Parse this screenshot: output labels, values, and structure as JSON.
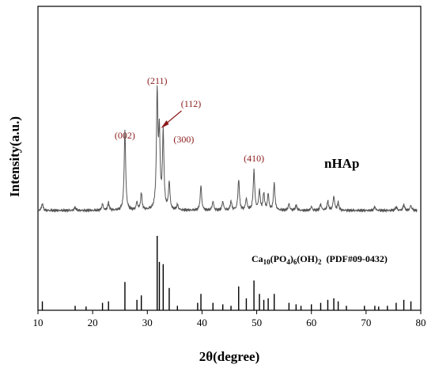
{
  "chart_data": {
    "type": "line",
    "xlabel": "2θ(degree)",
    "ylabel": "Intensity(a.u.)",
    "xlim": [
      10,
      80
    ],
    "xticks": [
      10,
      20,
      30,
      40,
      50,
      60,
      70,
      80
    ],
    "grid": false,
    "legend": "none",
    "colors": {
      "axis": "#000000",
      "pattern": "#555555",
      "reference": "#000000",
      "annotation": "#8b1a1a"
    },
    "sample_label": "nHAp",
    "reference_label": {
      "main": "Ca",
      "sub1": "10",
      "paren_open": "(PO",
      "sub2": "4",
      "paren_close": ")",
      "sub3": "6",
      "oh": "(OH)",
      "sub4": "2",
      "pdf": "(PDF#09-0432)"
    },
    "annotations": [
      {
        "label": "(211)",
        "x": 31.8
      },
      {
        "label": "(112)",
        "x": 32.2
      },
      {
        "label": "(300)",
        "x": 32.9
      },
      {
        "label": "(002)",
        "x": 25.9
      },
      {
        "label": "(410)",
        "x": 49.5
      }
    ],
    "series": [
      {
        "baseline": 0,
        "peaks": [
          [
            10.8,
            11
          ],
          [
            16.8,
            5
          ],
          [
            21.8,
            10
          ],
          [
            22.9,
            12
          ],
          [
            25.9,
            125
          ],
          [
            28.1,
            12
          ],
          [
            28.9,
            26
          ],
          [
            31.8,
            175
          ],
          [
            32.2,
            110
          ],
          [
            32.9,
            118
          ],
          [
            34.0,
            42
          ],
          [
            35.5,
            8
          ],
          [
            39.8,
            38
          ],
          [
            42.0,
            14
          ],
          [
            43.8,
            14
          ],
          [
            45.3,
            14
          ],
          [
            46.7,
            48
          ],
          [
            48.1,
            18
          ],
          [
            49.5,
            62
          ],
          [
            50.5,
            30
          ],
          [
            51.3,
            26
          ],
          [
            52.1,
            24
          ],
          [
            53.2,
            42
          ],
          [
            55.9,
            10
          ],
          [
            57.2,
            8
          ],
          [
            60.0,
            6
          ],
          [
            61.7,
            10
          ],
          [
            63.0,
            14
          ],
          [
            64.1,
            22
          ],
          [
            64.9,
            12
          ],
          [
            71.6,
            6
          ],
          [
            75.5,
            6
          ],
          [
            76.9,
            9
          ],
          [
            78.2,
            8
          ]
        ]
      },
      {
        "type": "stick",
        "sticks": [
          [
            10.8,
            12
          ],
          [
            16.8,
            6
          ],
          [
            18.8,
            5
          ],
          [
            21.8,
            10
          ],
          [
            22.9,
            12
          ],
          [
            25.9,
            38
          ],
          [
            28.1,
            14
          ],
          [
            28.9,
            20
          ],
          [
            31.8,
            100
          ],
          [
            32.2,
            65
          ],
          [
            32.9,
            62
          ],
          [
            34.0,
            30
          ],
          [
            35.5,
            6
          ],
          [
            39.2,
            10
          ],
          [
            39.8,
            22
          ],
          [
            42.0,
            10
          ],
          [
            43.8,
            8
          ],
          [
            45.3,
            6
          ],
          [
            46.7,
            32
          ],
          [
            48.1,
            16
          ],
          [
            49.5,
            40
          ],
          [
            50.5,
            22
          ],
          [
            51.3,
            14
          ],
          [
            52.1,
            16
          ],
          [
            53.2,
            22
          ],
          [
            55.9,
            10
          ],
          [
            57.2,
            8
          ],
          [
            58.1,
            6
          ],
          [
            60.0,
            8
          ],
          [
            61.7,
            10
          ],
          [
            63.0,
            14
          ],
          [
            64.1,
            16
          ],
          [
            64.9,
            12
          ],
          [
            66.4,
            6
          ],
          [
            69.7,
            6
          ],
          [
            71.6,
            6
          ],
          [
            72.3,
            5
          ],
          [
            73.9,
            6
          ],
          [
            75.5,
            10
          ],
          [
            76.9,
            14
          ],
          [
            78.2,
            12
          ]
        ]
      }
    ]
  }
}
